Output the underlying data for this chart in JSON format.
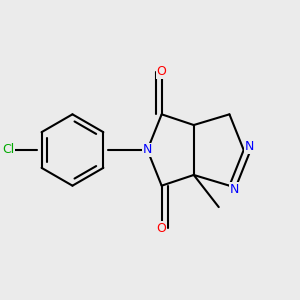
{
  "bg_color": "#ebebeb",
  "bond_color": "#000000",
  "bond_width": 1.5,
  "double_sep": 0.012,
  "atom_colors": {
    "N": "#0000ff",
    "O": "#ff0000",
    "Cl": "#00aa00",
    "C": "#000000"
  },
  "font_size": 9,
  "fig_w": 3.0,
  "fig_h": 3.0,
  "dpi": 100
}
